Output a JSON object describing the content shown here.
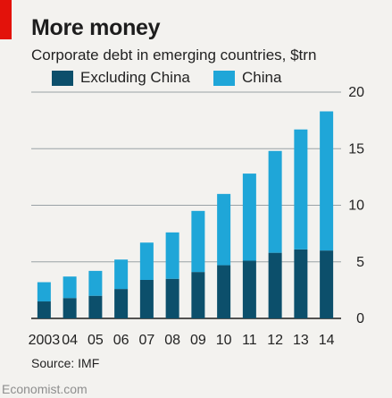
{
  "header": {
    "title": "More money",
    "subtitle": "Corporate debt in emerging countries, $trn"
  },
  "footer": {
    "source": "Source: IMF",
    "brand": "Economist.com"
  },
  "colors": {
    "accent_red": "#e3120b",
    "excluding_china": "#0c4f6b",
    "china": "#1fa6d8",
    "gridline": "#9aa2a6"
  },
  "chart_data": {
    "type": "bar",
    "stacked": true,
    "title": "More money",
    "subtitle": "Corporate debt in emerging countries, $trn",
    "categories": [
      "2003",
      "04",
      "05",
      "06",
      "07",
      "08",
      "09",
      "10",
      "11",
      "12",
      "13",
      "14"
    ],
    "series": [
      {
        "name": "Excluding China",
        "values": [
          1.5,
          1.8,
          2.0,
          2.6,
          3.4,
          3.5,
          4.1,
          4.7,
          5.1,
          5.8,
          6.1,
          6.0
        ]
      },
      {
        "name": "China",
        "values": [
          1.7,
          1.9,
          2.2,
          2.6,
          3.3,
          4.1,
          5.4,
          6.3,
          7.7,
          9.0,
          10.6,
          12.3
        ]
      }
    ],
    "ylim": [
      0,
      20
    ],
    "yticks": [
      0,
      5,
      10,
      15,
      20
    ],
    "y_axis_position": "right",
    "grid": true,
    "legend_position": "top"
  }
}
